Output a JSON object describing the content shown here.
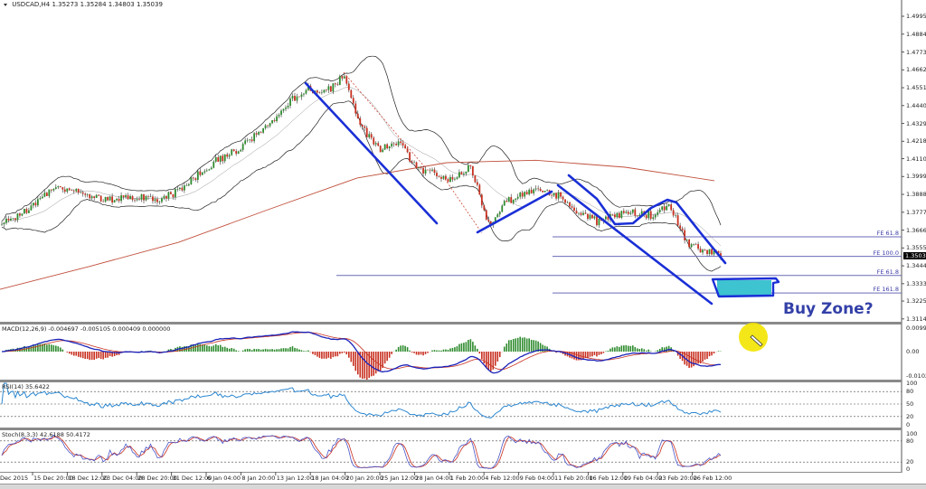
{
  "chart_data": {
    "type": "candlestick",
    "header": {
      "symbol": "USDCAD,H4",
      "ohlc": "1.35273 1.35284 1.34803 1.35039"
    },
    "price_ticks": [
      "1.49950",
      "1.48840",
      "1.47730",
      "1.46620",
      "1.45510",
      "1.44400",
      "1.43290",
      "1.42180",
      "1.41100",
      "1.39990",
      "1.38880",
      "1.37770",
      "1.36660",
      "1.35550",
      "1.34440",
      "1.33330",
      "1.32250",
      "1.31140"
    ],
    "current_price": "1.35039",
    "x_ticks": [
      "Dec 2015",
      "15 Dec 20:00",
      "18 Dec 12:00",
      "23 Dec 04:00",
      "28 Dec 20:00",
      "31 Dec 12:00",
      "6 Jan 04:00",
      "8 Jan 20:00",
      "13 Jan 12:00",
      "18 Jan 04:00",
      "20 Jan 20:00",
      "25 Jan 12:00",
      "28 Jan 04:00",
      "1 Feb 20:00",
      "4 Feb 12:00",
      "9 Feb 04:00",
      "11 Feb 20:00",
      "16 Feb 12:00",
      "19 Feb 04:00",
      "23 Feb 20:00",
      "26 Feb 12:00"
    ],
    "close_path": [
      1.369,
      1.376,
      1.383,
      1.394,
      1.392,
      1.388,
      1.385,
      1.388,
      1.387,
      1.386,
      1.392,
      1.402,
      1.41,
      1.416,
      1.424,
      1.432,
      1.446,
      1.455,
      1.452,
      1.462,
      1.43,
      1.416,
      1.422,
      1.405,
      1.402,
      1.398,
      1.407,
      1.37,
      1.384,
      1.39,
      1.392,
      1.387,
      1.378,
      1.372,
      1.376,
      1.378,
      1.376,
      1.382,
      1.358,
      1.353,
      1.35
    ],
    "moving_average_path": [
      1.3298,
      1.344,
      1.359,
      1.3793,
      1.399,
      1.4085,
      1.41,
      1.4057,
      1.3973
    ],
    "fib_levels": [
      {
        "label": "FE 61.8",
        "price": 1.3624
      },
      {
        "label": "FE 100.0",
        "price": 1.3503
      },
      {
        "label": "FE 61.8",
        "price": 1.3384
      },
      {
        "label": "FE 161.8",
        "price": 1.3275
      }
    ],
    "annotation": "Buy Zone?",
    "colors": {
      "bull": "#2e8b2e",
      "bear": "#c83020",
      "bands": "#222222",
      "ma": "#c0503c",
      "drawing": "#1a2fd6",
      "zone": "#3ec3d0",
      "highlight": "#f2e400",
      "fib": "#6a6ab8"
    },
    "indicators": {
      "macd": {
        "label": "MACD(12,26,9) -0.004697 -0.005105 0.000409 0.000000",
        "ticks": [
          "0.00993",
          "0.00",
          "-0.010275"
        ],
        "range": [
          -0.010275,
          0.00993
        ]
      },
      "rsi": {
        "label": "RSI(14) 35.6422",
        "ticks": [
          "100",
          "80",
          "50",
          "20",
          "0"
        ],
        "levels": [
          80,
          50,
          20
        ]
      },
      "stoch": {
        "label": "Stoch(8,3,3) 42.6188 50.4172",
        "ticks": [
          "100",
          "80",
          "20",
          "0"
        ],
        "levels": [
          80,
          20
        ]
      }
    }
  }
}
